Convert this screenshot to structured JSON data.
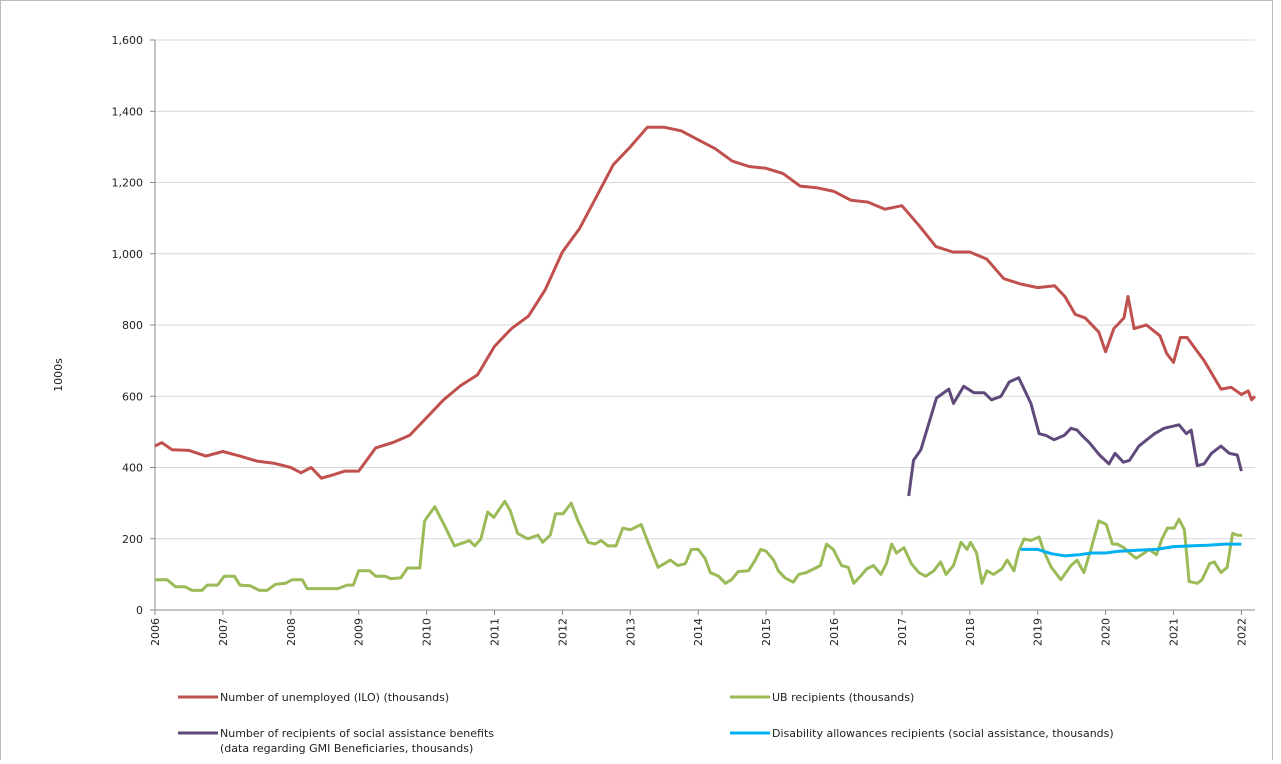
{
  "chart_data": {
    "type": "line",
    "y_label": "1000s",
    "xlim": [
      2006,
      2022.2
    ],
    "xticks": [
      2006,
      2007,
      2008,
      2009,
      2010,
      2011,
      2012,
      2013,
      2014,
      2015,
      2016,
      2017,
      2018,
      2019,
      2020,
      2021,
      2022
    ],
    "ylim": [
      0,
      1600
    ],
    "yticks": [
      0,
      200,
      400,
      600,
      800,
      {
        "value": 1000,
        "label": "1,000"
      },
      {
        "value": 1200,
        "label": "1,200"
      },
      {
        "value": 1400,
        "label": "1,400"
      },
      {
        "value": 1600,
        "label": "1,600"
      }
    ],
    "grid": true,
    "series": [
      {
        "name": "Number of unemployed (ILO) (thousands)",
        "color": "#c0504d",
        "x": [
          2006.0,
          2006.1,
          2006.25,
          2006.5,
          2006.75,
          2007.0,
          2007.25,
          2007.5,
          2007.75,
          2008.0,
          2008.15,
          2008.3,
          2008.45,
          2008.6,
          2008.8,
          2009.0,
          2009.25,
          2009.5,
          2009.75,
          2010.0,
          2010.25,
          2010.5,
          2010.75,
          2011.0,
          2011.25,
          2011.5,
          2011.75,
          2012.0,
          2012.25,
          2012.5,
          2012.75,
          2013.0,
          2013.25,
          2013.5,
          2013.75,
          2014.0,
          2014.25,
          2014.5,
          2014.75,
          2015.0,
          2015.25,
          2015.5,
          2015.75,
          2016.0,
          2016.25,
          2016.5,
          2016.75,
          2017.0,
          2017.25,
          2017.5,
          2017.75,
          2018.0,
          2018.25,
          2018.5,
          2018.75,
          2019.0,
          2019.25,
          2019.4,
          2019.55,
          2019.7,
          2019.9,
          2020.0,
          2020.12,
          2020.27,
          2020.33,
          2020.42,
          2020.6,
          2020.8,
          2020.9,
          2021.0,
          2021.1,
          2021.2,
          2021.45,
          2021.7,
          2021.85,
          2022.0,
          2022.1,
          2022.15,
          2022.2
        ],
        "values": [
          460,
          470,
          450,
          448,
          432,
          445,
          432,
          418,
          412,
          400,
          385,
          400,
          370,
          378,
          390,
          390,
          455,
          470,
          490,
          540,
          590,
          630,
          660,
          740,
          790,
          825,
          900,
          1005,
          1070,
          1160,
          1250,
          1300,
          1355,
          1355,
          1345,
          1320,
          1295,
          1260,
          1245,
          1240,
          1225,
          1190,
          1185,
          1175,
          1150,
          1145,
          1125,
          1135,
          1080,
          1020,
          1005,
          1005,
          985,
          930,
          915,
          905,
          910,
          880,
          830,
          820,
          780,
          725,
          790,
          820,
          880,
          790,
          800,
          770,
          720,
          695,
          765,
          765,
          700,
          620,
          625,
          605,
          615,
          590,
          600
        ]
      },
      {
        "name": "UB recipients (thousands)",
        "color": "#9bbb59",
        "x": [
          2006.0,
          2006.18,
          2006.3,
          2006.44,
          2006.55,
          2006.69,
          2006.77,
          2006.92,
          2007.02,
          2007.17,
          2007.25,
          2007.4,
          2007.54,
          2007.65,
          2007.77,
          2007.92,
          2008.02,
          2008.17,
          2008.24,
          2008.39,
          2008.69,
          2008.83,
          2008.92,
          2009.0,
          2009.16,
          2009.25,
          2009.39,
          2009.47,
          2009.62,
          2009.72,
          2009.9,
          2009.97,
          2010.12,
          2010.27,
          2010.41,
          2010.56,
          2010.63,
          2010.71,
          2010.8,
          2010.9,
          2010.99,
          2011.15,
          2011.23,
          2011.34,
          2011.49,
          2011.64,
          2011.71,
          2011.82,
          2011.9,
          2012.01,
          2012.13,
          2012.23,
          2012.38,
          2012.48,
          2012.57,
          2012.67,
          2012.79,
          2012.89,
          2013.0,
          2013.16,
          2013.26,
          2013.41,
          2013.59,
          2013.7,
          2013.81,
          2013.9,
          2014.0,
          2014.1,
          2014.18,
          2014.3,
          2014.4,
          2014.49,
          2014.59,
          2014.74,
          2014.84,
          2014.92,
          2015.0,
          2015.11,
          2015.18,
          2015.28,
          2015.4,
          2015.48,
          2015.59,
          2015.7,
          2015.8,
          2015.89,
          2015.99,
          2016.11,
          2016.21,
          2016.29,
          2016.39,
          2016.48,
          2016.58,
          2016.69,
          2016.77,
          2016.85,
          2016.92,
          2017.03,
          2017.14,
          2017.25,
          2017.35,
          2017.47,
          2017.57,
          2017.65,
          2017.76,
          2017.87,
          2017.96,
          2018.01,
          2018.1,
          2018.18,
          2018.25,
          2018.35,
          2018.47,
          2018.55,
          2018.65,
          2018.72,
          2018.8,
          2018.9,
          2019.02,
          2019.09,
          2019.2,
          2019.34,
          2019.49,
          2019.58,
          2019.68,
          2019.79,
          2019.9,
          2020.01,
          2020.1,
          2020.17,
          2020.27,
          2020.35,
          2020.45,
          2020.57,
          2020.64,
          2020.75,
          2020.83,
          2020.91,
          2021.01,
          2021.08,
          2021.16,
          2021.23,
          2021.35,
          2021.42,
          2021.53,
          2021.6,
          2021.7,
          2021.79,
          2021.87,
          2021.94,
          2022.01
        ],
        "values": [
          85,
          85,
          65,
          65,
          55,
          55,
          70,
          70,
          95,
          95,
          70,
          68,
          55,
          55,
          72,
          75,
          85,
          85,
          60,
          60,
          60,
          70,
          70,
          110,
          110,
          95,
          95,
          88,
          90,
          118,
          118,
          250,
          290,
          235,
          180,
          190,
          195,
          180,
          200,
          275,
          260,
          305,
          280,
          215,
          200,
          210,
          190,
          210,
          270,
          270,
          300,
          250,
          190,
          185,
          195,
          180,
          180,
          230,
          225,
          240,
          190,
          120,
          140,
          125,
          130,
          170,
          170,
          145,
          105,
          95,
          75,
          85,
          108,
          110,
          140,
          170,
          165,
          140,
          110,
          90,
          78,
          100,
          105,
          115,
          125,
          185,
          170,
          125,
          120,
          75,
          95,
          115,
          125,
          100,
          130,
          185,
          160,
          175,
          130,
          105,
          95,
          110,
          135,
          100,
          125,
          190,
          170,
          190,
          160,
          75,
          110,
          100,
          115,
          140,
          110,
          165,
          200,
          195,
          205,
          165,
          120,
          85,
          125,
          140,
          105,
          175,
          250,
          240,
          185,
          185,
          175,
          160,
          145,
          160,
          170,
          155,
          200,
          230,
          230,
          255,
          225,
          80,
          75,
          85,
          130,
          135,
          105,
          120,
          215,
          210,
          210
        ]
      },
      {
        "name": "Number of recipients of social assistance benefits\n(data regarding GMI Beneficiaries, thousands)",
        "color": "#604a7b",
        "x": [
          2017.1,
          2017.17,
          2017.28,
          2017.51,
          2017.69,
          2017.76,
          2017.91,
          2018.06,
          2018.21,
          2018.32,
          2018.46,
          2018.58,
          2018.72,
          2018.9,
          2019.02,
          2019.12,
          2019.24,
          2019.39,
          2019.49,
          2019.58,
          2019.65,
          2019.76,
          2019.91,
          2020.05,
          2020.14,
          2020.26,
          2020.35,
          2020.49,
          2020.72,
          2020.86,
          2021.08,
          2021.19,
          2021.26,
          2021.35,
          2021.45,
          2021.56,
          2021.7,
          2021.82,
          2021.94,
          2022.0
        ],
        "values": [
          320,
          420,
          450,
          595,
          620,
          580,
          628,
          610,
          610,
          590,
          600,
          640,
          652,
          580,
          495,
          490,
          478,
          490,
          510,
          505,
          490,
          470,
          435,
          410,
          440,
          415,
          420,
          460,
          495,
          510,
          520,
          495,
          505,
          405,
          410,
          440,
          460,
          440,
          435,
          390
        ]
      },
      {
        "name": "Disability allowances recipients (social assistance, thousands)",
        "color": "#00b0f0",
        "x": [
          2018.75,
          2019.0,
          2019.2,
          2019.4,
          2019.6,
          2019.8,
          2020.0,
          2020.2,
          2020.5,
          2020.75,
          2021.0,
          2021.25,
          2021.5,
          2021.75,
          2022.0
        ],
        "values": [
          170,
          170,
          158,
          152,
          155,
          160,
          160,
          165,
          168,
          170,
          178,
          180,
          182,
          185,
          185
        ]
      }
    ]
  }
}
